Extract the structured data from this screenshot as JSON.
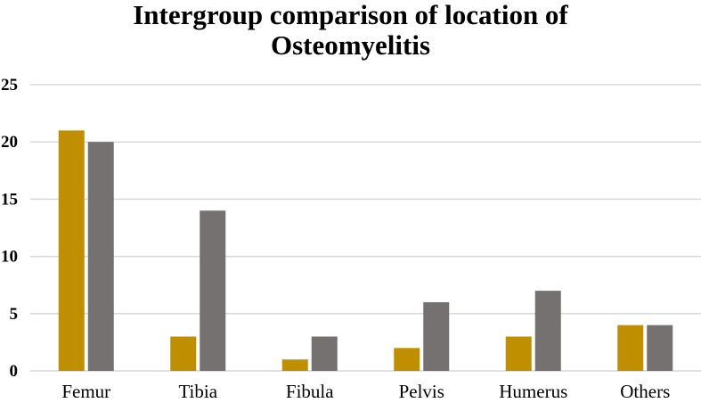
{
  "chart_data": {
    "type": "bar",
    "title_lines": [
      "Intergroup comparison of location of",
      "Osteomyelitis"
    ],
    "xlabel": "",
    "ylabel": "",
    "categories": [
      "Femur",
      "Tibia",
      "Fibula",
      "Pelvis",
      "Humerus",
      "Others"
    ],
    "series": [
      {
        "values": [
          21,
          3,
          1,
          2,
          3,
          4
        ],
        "color": "#BF8F00"
      },
      {
        "values": [
          20,
          14,
          3,
          6,
          7,
          4
        ],
        "color": "#767171"
      }
    ],
    "ylim": [
      0,
      25
    ],
    "yticks": [
      "0",
      "5",
      "10",
      "15",
      "20",
      "25"
    ],
    "grid": true,
    "legend": "none",
    "gridline_color": "#D9D9D9"
  }
}
